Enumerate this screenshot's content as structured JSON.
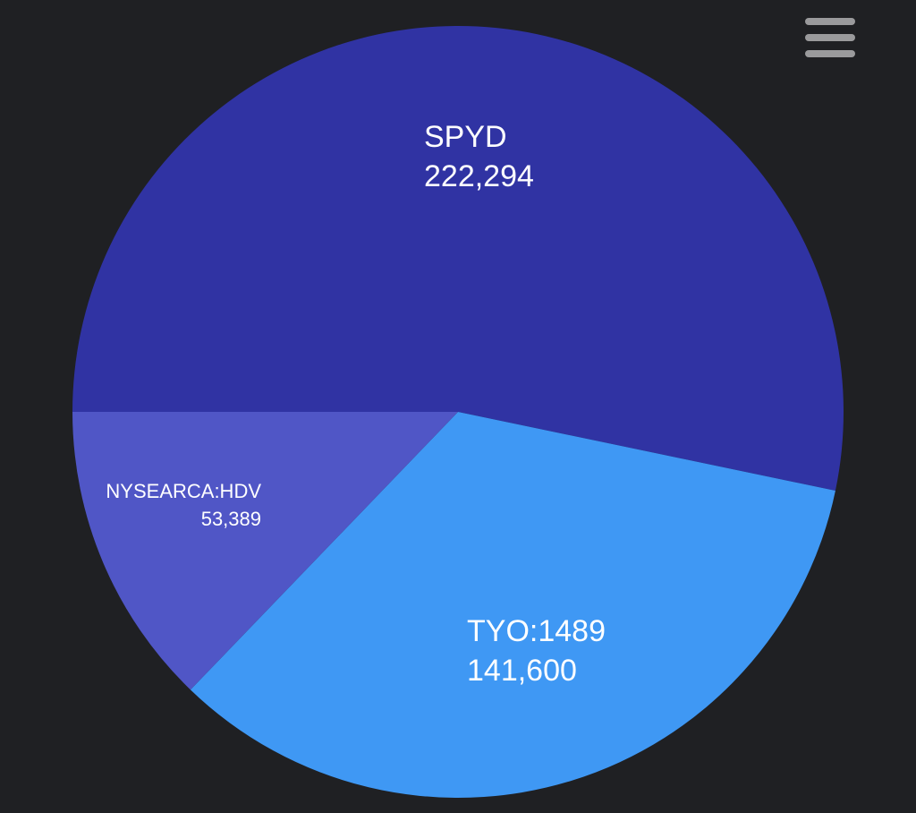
{
  "chart_data": {
    "type": "pie",
    "categories": [
      "SPYD",
      "TYO:1489",
      "NYSEARCA:HDV"
    ],
    "values": [
      222294,
      141600,
      53389
    ],
    "value_labels": [
      "222,294",
      "141,600",
      "53,389"
    ],
    "colors": [
      "#3033a3",
      "#3f98f4",
      "#5056c6"
    ]
  }
}
